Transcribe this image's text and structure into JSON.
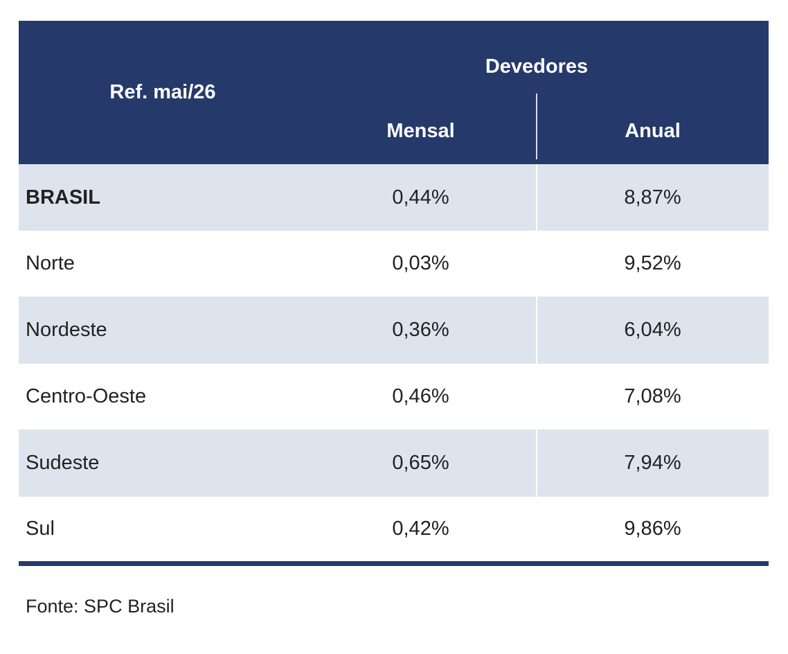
{
  "header": {
    "ref": "Ref. mai/26",
    "group": "Devedores",
    "columns": [
      "Mensal",
      "Anual"
    ]
  },
  "table": {
    "rows": [
      [
        "BRASIL",
        "0,44%",
        "8,87%"
      ],
      [
        "Norte",
        "0,03%",
        "9,52%"
      ],
      [
        "Nordeste",
        "0,36%",
        "6,04%"
      ],
      [
        "Centro-Oeste",
        "0,46%",
        "7,08%"
      ],
      [
        "Sudeste",
        "0,65%",
        "7,94%"
      ],
      [
        "Sul",
        "0,42%",
        "9,86%"
      ]
    ]
  },
  "source": "Fonte: SPC Brasil"
}
